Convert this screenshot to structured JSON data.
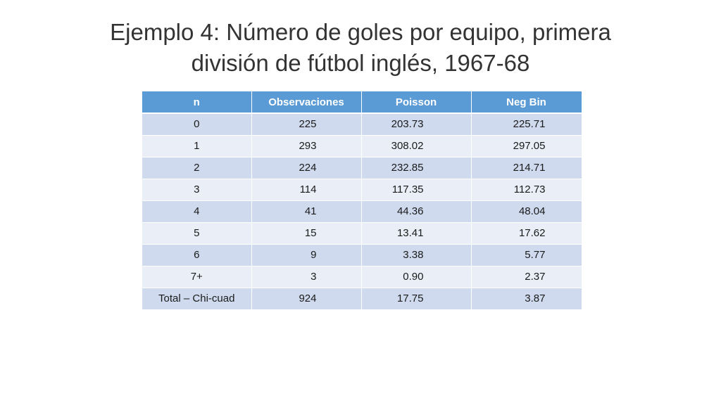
{
  "slide": {
    "title_line1": "Ejemplo 4: Número de goles por equipo, primera",
    "title_line2": "división de fútbol inglés, 1967-68"
  },
  "table": {
    "headers": [
      "n",
      "Observaciones",
      "Poisson",
      "Neg Bin"
    ],
    "rows": [
      [
        "0",
        "225",
        "203.73",
        "225.71"
      ],
      [
        "1",
        "293",
        "308.02",
        "297.05"
      ],
      [
        "2",
        "224",
        "232.85",
        "214.71"
      ],
      [
        "3",
        "114",
        "117.35",
        "112.73"
      ],
      [
        "4",
        "41",
        "44.36",
        "48.04"
      ],
      [
        "5",
        "15",
        "13.41",
        "17.62"
      ],
      [
        "6",
        "9",
        "3.38",
        "5.77"
      ],
      [
        "7+",
        "3",
        "0.90",
        "2.37"
      ],
      [
        "Total – Chi-cuad",
        "924",
        "17.75",
        "3.87"
      ]
    ]
  },
  "colors": {
    "header_bg": "#5b9bd5",
    "row_dark": "#cfdaee",
    "row_light": "#e9eef7"
  }
}
